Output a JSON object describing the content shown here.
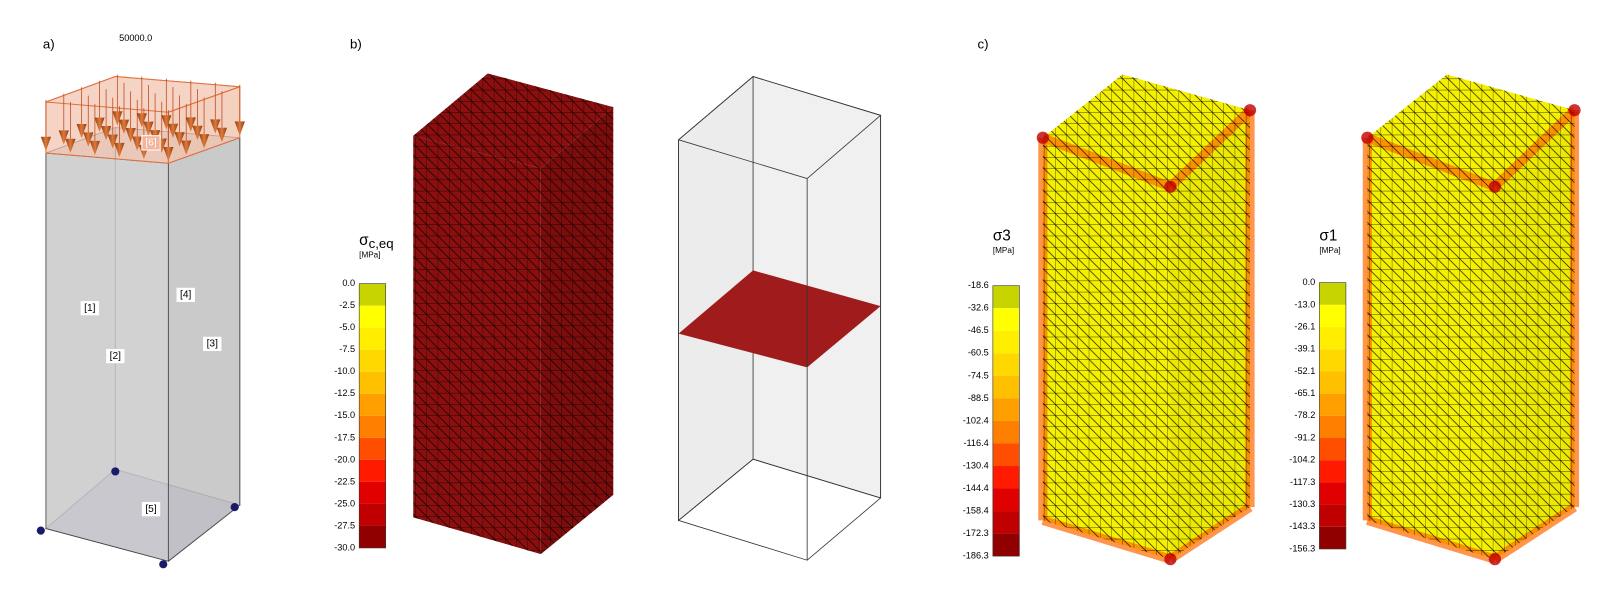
{
  "panels": [
    {
      "label": "a)",
      "load": "50000.0",
      "members": [
        "[1]",
        "[2]",
        "[3]",
        "[4]",
        "[5]",
        "[6]"
      ]
    },
    {
      "label": "b)",
      "legends": [
        {
          "symbol": "σ",
          "subscript": "c,eq",
          "unit": "[MPa]",
          "ticks": [
            "0.0",
            "-2.5",
            "-5.0",
            "-7.5",
            "-10.0",
            "-12.5",
            "-15.0",
            "-17.5",
            "-20.0",
            "-22.5",
            "-25.0",
            "-27.5",
            "-30.0"
          ],
          "colors": [
            "#c8d400",
            "#ffff00",
            "#ffee00",
            "#ffd800",
            "#ffc000",
            "#ffa000",
            "#ff8000",
            "#ff4e00",
            "#ff1a00",
            "#e00000",
            "#c00000",
            "#900000"
          ]
        }
      ]
    },
    {
      "label": "c)",
      "legends": [
        {
          "symbol": "σ3",
          "unit": "[MPa]",
          "ticks": [
            "-18.6",
            "-32.6",
            "-46.5",
            "-60.5",
            "-74.5",
            "-88.5",
            "-102.4",
            "-116.4",
            "-130.4",
            "-144.4",
            "-158.4",
            "-172.3",
            "-186.3"
          ],
          "colors": [
            "#c8d400",
            "#ffff00",
            "#ffee00",
            "#ffd800",
            "#ffc000",
            "#ffa000",
            "#ff8000",
            "#ff4e00",
            "#ff1a00",
            "#e00000",
            "#c00000",
            "#900000"
          ]
        },
        {
          "symbol": "σ1",
          "unit": "[MPa]",
          "ticks": [
            "0.0",
            "-13.0",
            "-26.1",
            "-39.1",
            "-52.1",
            "-65.1",
            "-78.2",
            "-91.2",
            "-104.2",
            "-117.3",
            "-130.3",
            "-143.3",
            "-156.3"
          ],
          "colors": [
            "#c8d400",
            "#ffff00",
            "#ffee00",
            "#ffd800",
            "#ffc000",
            "#ffa000",
            "#ff8000",
            "#ff4e00",
            "#ff1a00",
            "#e00000",
            "#c00000",
            "#900000"
          ]
        }
      ]
    }
  ]
}
